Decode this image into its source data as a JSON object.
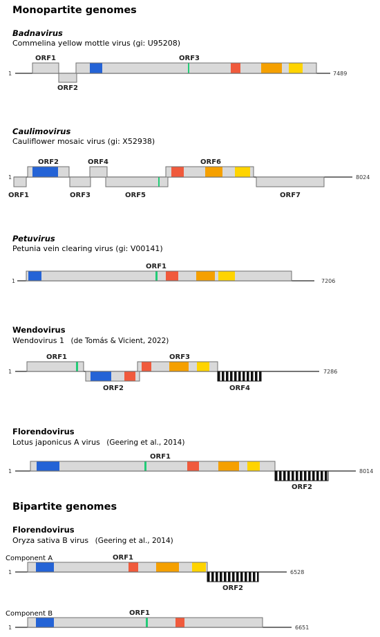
{
  "monopartite_heading": "Monopartite genomes",
  "bipartite_heading": "Bipartite genomes",
  "colors": {
    "orf_fill": "#d9d9d9",
    "orf_border": "#6f6f6f",
    "blue": "#2463d6",
    "green": "#22cc77",
    "red": "#f05a3c",
    "orange": "#f5a000",
    "yellow": "#ffd400",
    "axis": "#222222"
  },
  "genomes": [
    {
      "id": "badnavirus",
      "genus": "Badnavirus",
      "genus_italic": true,
      "virus": "Commelina yellow mottle virus  (gi: U95208)",
      "start_label": "1",
      "end_label": "7489",
      "orfs": [
        {
          "label": "ORF1",
          "position": "above",
          "label_side": "top"
        },
        {
          "label": "ORF2",
          "position": "below",
          "label_side": "bottom"
        },
        {
          "label": "ORF3",
          "position": "above",
          "label_side": "top"
        }
      ]
    },
    {
      "id": "caulimovirus",
      "genus": "Caulimovirus",
      "genus_italic": true,
      "virus": "Cauliflower mosaic virus (gi: X52938)",
      "start_label": "1",
      "end_label": "8024",
      "orfs": [
        {
          "label": "ORF1",
          "position": "below",
          "label_side": "bottom"
        },
        {
          "label": "ORF2",
          "position": "above",
          "label_side": "top"
        },
        {
          "label": "ORF3",
          "position": "below",
          "label_side": "bottom"
        },
        {
          "label": "ORF4",
          "position": "above",
          "label_side": "top"
        },
        {
          "label": "ORF5",
          "position": "below",
          "label_side": "bottom"
        },
        {
          "label": "ORF6",
          "position": "above",
          "label_side": "top"
        },
        {
          "label": "ORF7",
          "position": "below",
          "label_side": "bottom"
        }
      ]
    },
    {
      "id": "petuvirus",
      "genus": "Petuvirus",
      "genus_italic": true,
      "virus": "Petunia vein clearing virus (gi: V00141)",
      "start_label": "1",
      "end_label": "7206",
      "orfs": [
        {
          "label": "ORF1",
          "position": "above",
          "label_side": "top"
        }
      ]
    },
    {
      "id": "wendovirus",
      "genus": "Wendovirus",
      "genus_italic": false,
      "virus": "Wendovirus 1",
      "citation": "(de Tomás & Vicient, 2022)",
      "start_label": "1",
      "end_label": "7286",
      "orfs": [
        {
          "label": "ORF1",
          "position": "above",
          "label_side": "top"
        },
        {
          "label": "ORF2",
          "position": "below",
          "label_side": "bottom"
        },
        {
          "label": "ORF3",
          "position": "above",
          "label_side": "top"
        },
        {
          "label": "ORF4",
          "position": "below",
          "label_side": "bottom",
          "striped": true
        }
      ]
    },
    {
      "id": "florendovirus-lj",
      "genus": "Florendovirus",
      "genus_italic": false,
      "virus": "Lotus japonicus A virus",
      "citation": "(Geering et al., 2014)",
      "start_label": "1",
      "end_label": "8014",
      "orfs": [
        {
          "label": "ORF1",
          "position": "above",
          "label_side": "top"
        },
        {
          "label": "ORF2",
          "position": "below",
          "label_side": "bottom",
          "striped": true
        }
      ]
    },
    {
      "id": "florendovirus-os-a",
      "genus": "Florendovirus",
      "genus_italic": false,
      "virus": "Oryza sativa B virus",
      "citation": "(Geering et al., 2014)",
      "component": "Component A",
      "start_label": "1",
      "end_label": "6528",
      "orfs": [
        {
          "label": "ORF1",
          "position": "above",
          "label_side": "top"
        },
        {
          "label": "ORF2",
          "position": "below",
          "label_side": "bottom",
          "striped": true
        }
      ]
    },
    {
      "id": "florendovirus-os-b",
      "component": "Component B",
      "start_label": "1",
      "end_label": "6651",
      "orfs": [
        {
          "label": "ORF1",
          "position": "above",
          "label_side": "top"
        }
      ]
    }
  ]
}
